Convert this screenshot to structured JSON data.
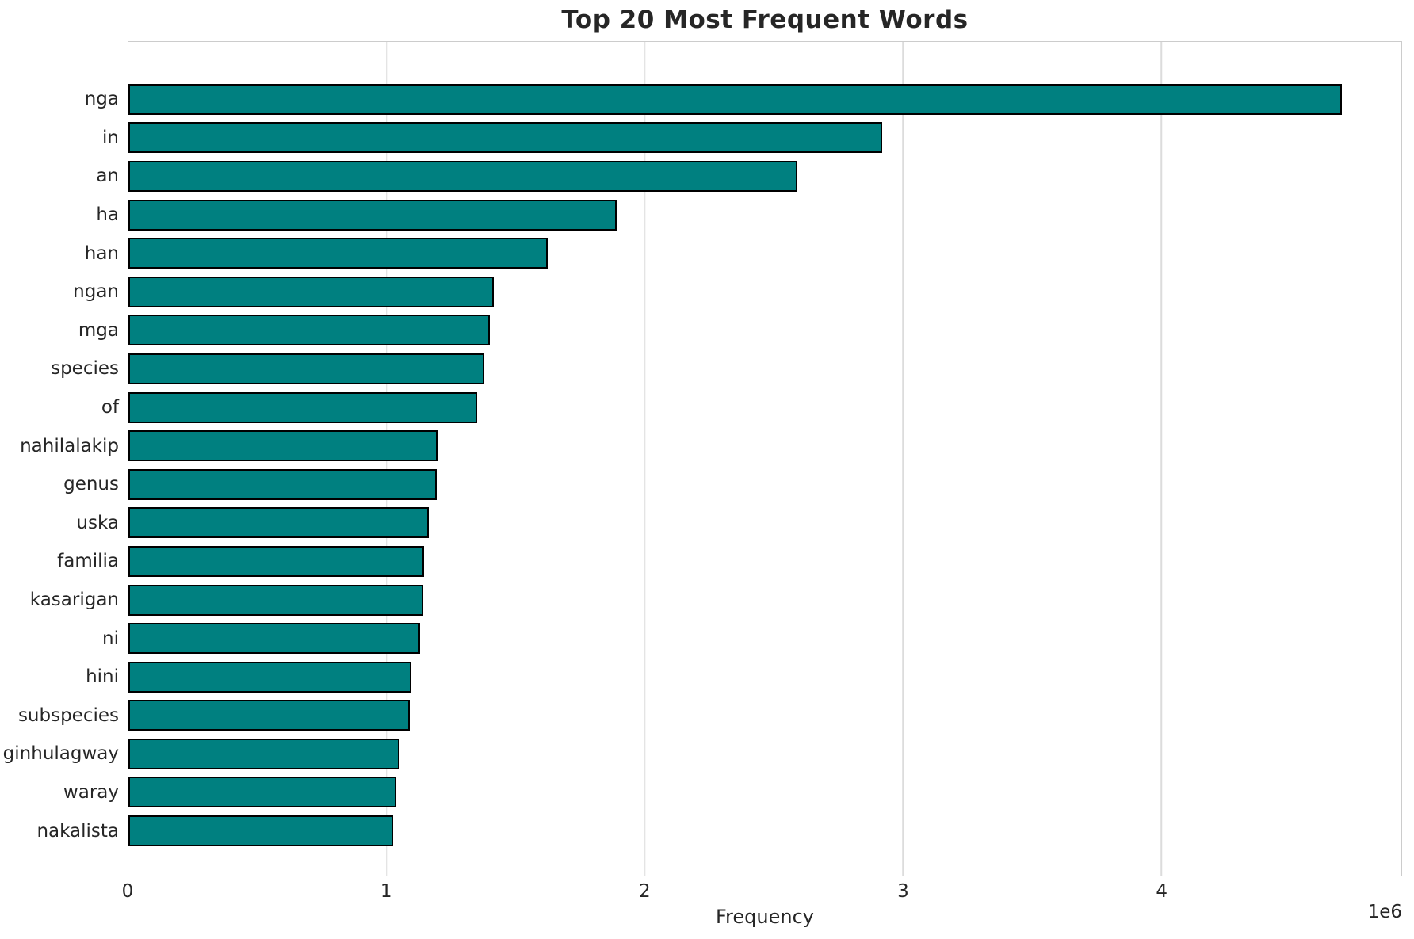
{
  "chart_data": {
    "type": "bar",
    "orientation": "horizontal",
    "title": "Top 20 Most Frequent Words",
    "xlabel": "Frequency",
    "ylabel": "",
    "categories": [
      "nga",
      "in",
      "an",
      "ha",
      "han",
      "ngan",
      "mga",
      "species",
      "of",
      "nahilalakip",
      "genus",
      "uska",
      "familia",
      "kasarigan",
      "ni",
      "hini",
      "subspecies",
      "ginhulagway",
      "waray",
      "nakalista"
    ],
    "values": [
      4700000,
      2920000,
      2590000,
      1890000,
      1625000,
      1415000,
      1400000,
      1377000,
      1350000,
      1198000,
      1193000,
      1162000,
      1145000,
      1143000,
      1130000,
      1097000,
      1089000,
      1051000,
      1037000,
      1025000
    ],
    "xlim": [
      0,
      4930000
    ],
    "x_ticks": [
      0,
      1,
      2,
      3,
      4
    ],
    "x_tick_labels": [
      "0",
      "1",
      "2",
      "3",
      "4"
    ],
    "x_tick_multiplier": "1e6",
    "grid": true,
    "legend_position": "none",
    "bar_color": "#008080",
    "bar_edge_color": "#000000",
    "grid_color": "#dcdcdc",
    "text_color": "#262626"
  }
}
